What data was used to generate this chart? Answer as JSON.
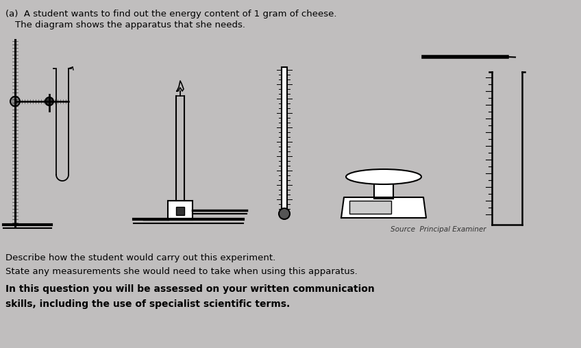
{
  "bg_color": "#c0bebe",
  "title_part_a": "(a)  A student wants to find out the energy content of 1 gram of cheese.",
  "title_part_b": "      The diagram shows the apparatus that she needs.",
  "source_text": "Source  Principal Examiner",
  "line1": "Describe how the student would carry out this experiment.",
  "line2": "State any measurements she would need to take when using this apparatus.",
  "line3_bold": "In this question you will be assessed on your written communication",
  "line4_bold": "skills, including the use of specialist scientific terms.",
  "fig_width": 8.48,
  "fig_height": 5.08,
  "dpi": 100
}
